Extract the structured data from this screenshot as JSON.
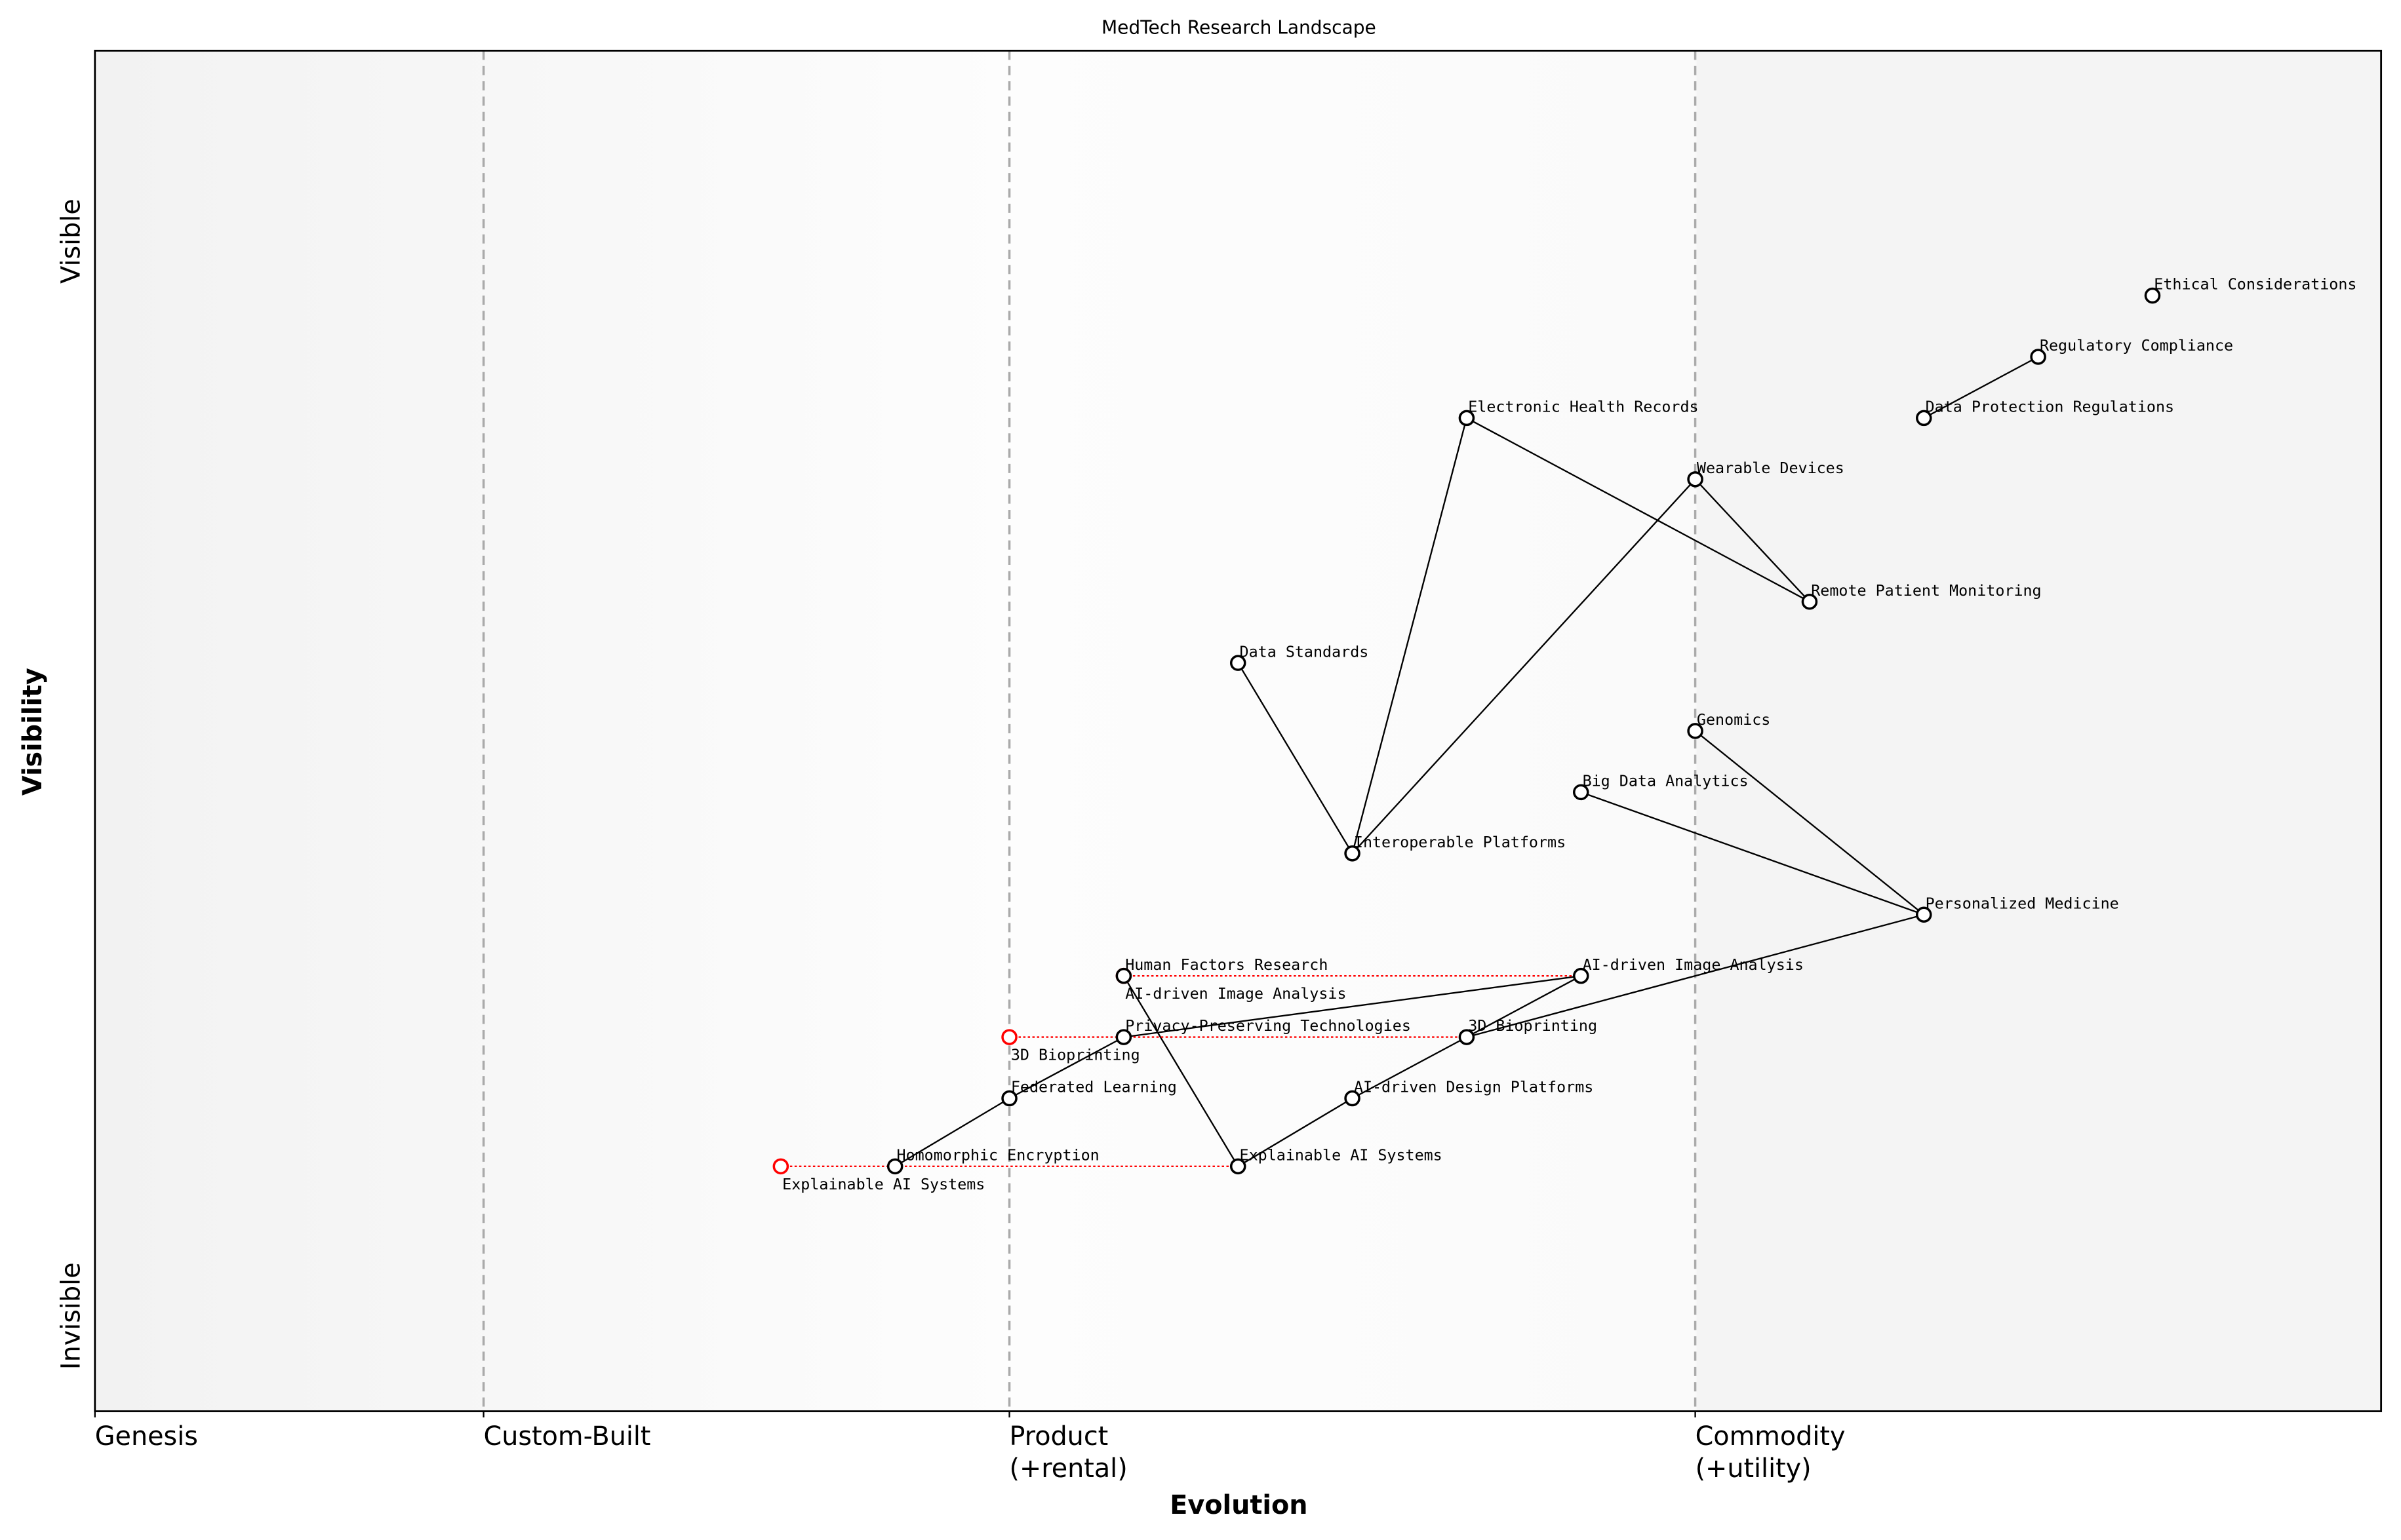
{
  "chart_data": {
    "type": "scatter",
    "title": "MedTech Research Landscape",
    "xlabel": "Evolution",
    "ylabel": "Visibility",
    "xlim": [
      0,
      1
    ],
    "ylim": [
      0,
      1
    ],
    "x_ticks": [
      {
        "value": 0,
        "label": "Genesis"
      },
      {
        "value": 0.17,
        "label": "Custom-Built"
      },
      {
        "value": 0.4,
        "label": "Product\n(+rental)"
      },
      {
        "value": 0.7,
        "label": "Commodity\n(+utility)"
      }
    ],
    "y_ticks": [
      {
        "value": 0.07,
        "label": "Invisible"
      },
      {
        "value": 0.86,
        "label": "Visible"
      }
    ],
    "stage_dividers": [
      0.17,
      0.4,
      0.7
    ],
    "colors": {
      "node": "#000000",
      "move": "#ff0000",
      "divider": "#aaaaaa"
    },
    "components": [
      {
        "name": "Ethical Considerations",
        "x": 0.9,
        "y": 0.82
      },
      {
        "name": "Regulatory Compliance",
        "x": 0.85,
        "y": 0.775
      },
      {
        "name": "Data Protection Regulations",
        "x": 0.8,
        "y": 0.73
      },
      {
        "name": "Electronic Health Records",
        "x": 0.6,
        "y": 0.73
      },
      {
        "name": "Wearable Devices",
        "x": 0.7,
        "y": 0.685
      },
      {
        "name": "Remote Patient Monitoring",
        "x": 0.75,
        "y": 0.595
      },
      {
        "name": "Data Standards",
        "x": 0.5,
        "y": 0.55
      },
      {
        "name": "Genomics",
        "x": 0.7,
        "y": 0.5
      },
      {
        "name": "Big Data Analytics",
        "x": 0.65,
        "y": 0.455
      },
      {
        "name": "Interoperable Platforms",
        "x": 0.55,
        "y": 0.41
      },
      {
        "name": "Personalized Medicine",
        "x": 0.8,
        "y": 0.365
      },
      {
        "name": "AI-driven Image Analysis",
        "x": 0.65,
        "y": 0.32
      },
      {
        "name": "Human Factors Research",
        "x": 0.45,
        "y": 0.32
      },
      {
        "name": "3D Bioprinting",
        "x": 0.6,
        "y": 0.275
      },
      {
        "name": "Privacy-Preserving Technologies",
        "x": 0.45,
        "y": 0.275
      },
      {
        "name": "AI-driven Design Platforms",
        "x": 0.55,
        "y": 0.23
      },
      {
        "name": "Federated Learning",
        "x": 0.4,
        "y": 0.23
      },
      {
        "name": "Explainable AI Systems",
        "x": 0.5,
        "y": 0.18
      },
      {
        "name": "Homomorphic Encryption",
        "x": 0.35,
        "y": 0.18
      }
    ],
    "links": [
      [
        "Regulatory Compliance",
        "Data Protection Regulations"
      ],
      [
        "Electronic Health Records",
        "Interoperable Platforms"
      ],
      [
        "Electronic Health Records",
        "Remote Patient Monitoring"
      ],
      [
        "Wearable Devices",
        "Remote Patient Monitoring"
      ],
      [
        "Wearable Devices",
        "Interoperable Platforms"
      ],
      [
        "Data Standards",
        "Interoperable Platforms"
      ],
      [
        "Genomics",
        "Personalized Medicine"
      ],
      [
        "Big Data Analytics",
        "Personalized Medicine"
      ],
      [
        "Personalized Medicine",
        "3D Bioprinting"
      ],
      [
        "AI-driven Image Analysis",
        "3D Bioprinting"
      ],
      [
        "AI-driven Image Analysis",
        "Privacy-Preserving Technologies"
      ],
      [
        "3D Bioprinting",
        "AI-driven Design Platforms"
      ],
      [
        "AI-driven Design Platforms",
        "Explainable AI Systems"
      ],
      [
        "Human Factors Research",
        "Explainable AI Systems"
      ],
      [
        "Privacy-Preserving Technologies",
        "Federated Learning"
      ],
      [
        "Federated Learning",
        "Homomorphic Encryption"
      ]
    ],
    "moves": [
      {
        "name": "Explainable AI Systems",
        "x": 0.3,
        "y": 0.18,
        "to_x": 0.5
      },
      {
        "name": "3D Bioprinting",
        "x": 0.4,
        "y": 0.275,
        "to_x": 0.6
      },
      {
        "name": "AI-driven Image Analysis",
        "x": 0.45,
        "y": 0.32,
        "to_x": 0.65
      }
    ]
  }
}
